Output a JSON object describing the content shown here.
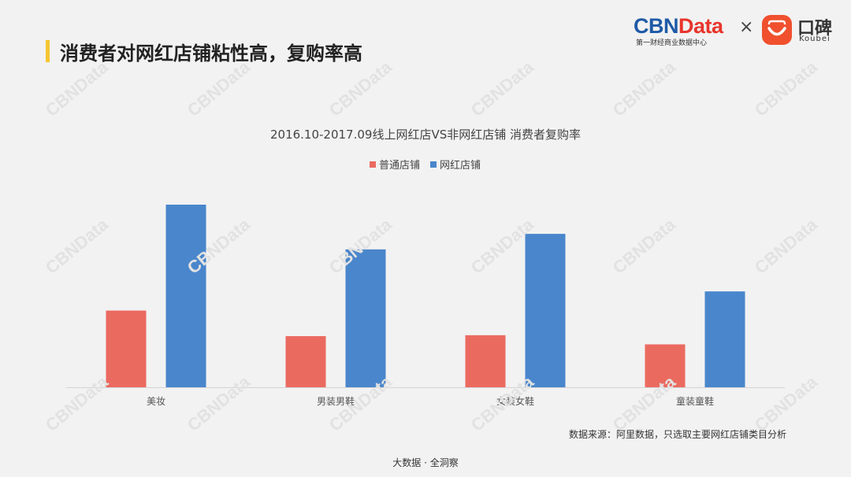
{
  "header": {
    "title": "消费者对网红店铺粘性高，复购率高"
  },
  "logos": {
    "cbn_part1": "CBN",
    "cbn_part2": "Data",
    "cbn_sub": "第一财经商业数据中心",
    "times": "×",
    "koubei_cn": "口碑",
    "koubei_en": "Koubei"
  },
  "colors": {
    "accent_bar": "#f6c531",
    "series_normal": "#eb6a60",
    "series_wanghong": "#4a86cc"
  },
  "chart_data": {
    "type": "bar",
    "title": "2016.10-2017.09线上网红店VS非网红店铺 消费者复购率",
    "legend_position": "top-center",
    "categories": [
      "美妆",
      "男装男鞋",
      "女装女鞋",
      "童装童鞋"
    ],
    "series": [
      {
        "name": "普通店铺",
        "values": [
          42,
          28,
          28.5,
          23.5
        ]
      },
      {
        "name": "网红店铺",
        "values": [
          100,
          75.5,
          84,
          52.5
        ]
      }
    ],
    "ylim": [
      0,
      110
    ],
    "grid": false,
    "xlabel": "",
    "ylabel": ""
  },
  "source": "数据来源：阿里数据，只选取主要网红店铺类目分析",
  "footer": "大数据 · 全洞察",
  "watermark_text": "CBNData"
}
